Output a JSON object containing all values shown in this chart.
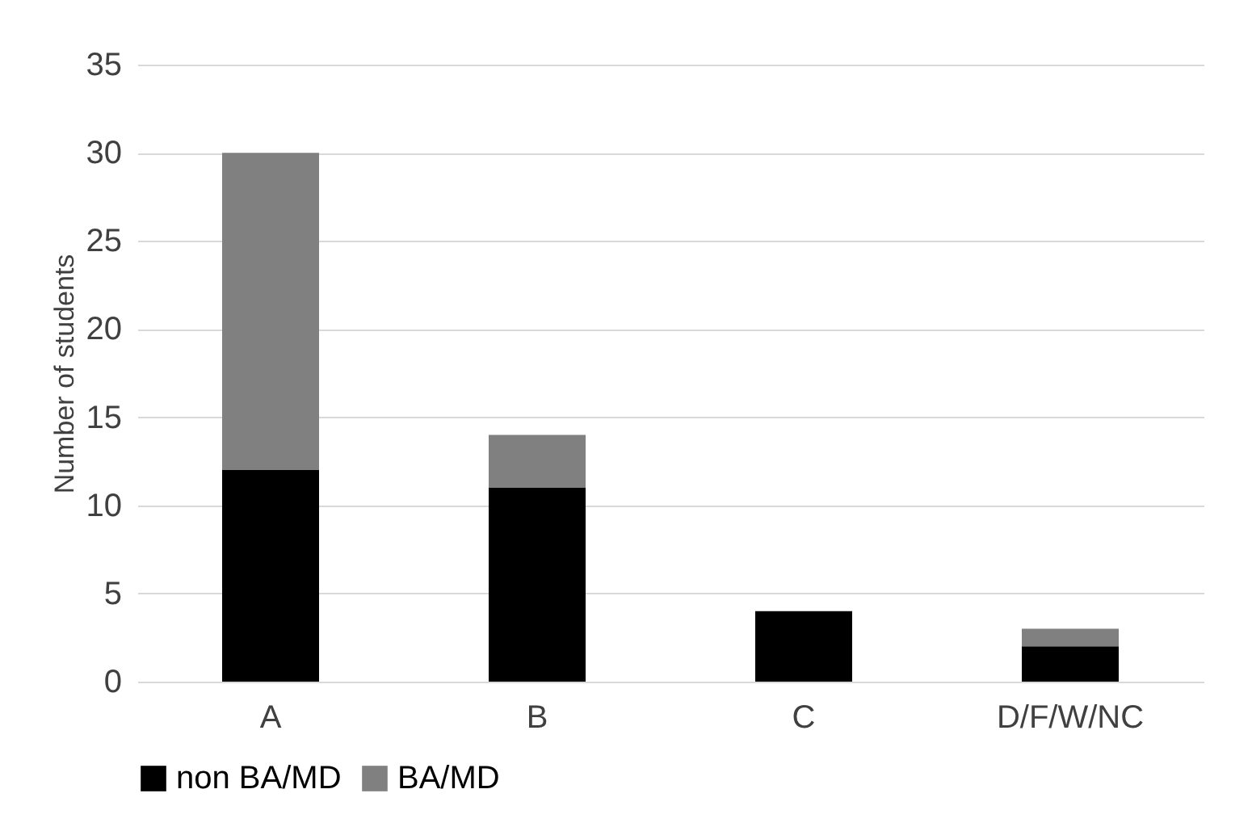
{
  "chart_data": {
    "type": "bar",
    "stacked": true,
    "ylabel": "Number of students",
    "categories": [
      "A",
      "B",
      "C",
      "D/F/W/NC"
    ],
    "series": [
      {
        "name": "non BA/MD",
        "color": "#000000",
        "values": [
          12,
          11,
          4,
          2
        ]
      },
      {
        "name": "BA/MD",
        "color": "#808080",
        "values": [
          18,
          3,
          0,
          1
        ]
      }
    ],
    "ylim": [
      0,
      35
    ],
    "yticks": [
      0,
      5,
      10,
      15,
      20,
      25,
      30,
      35
    ],
    "grid": "y",
    "legend": "bottom"
  }
}
